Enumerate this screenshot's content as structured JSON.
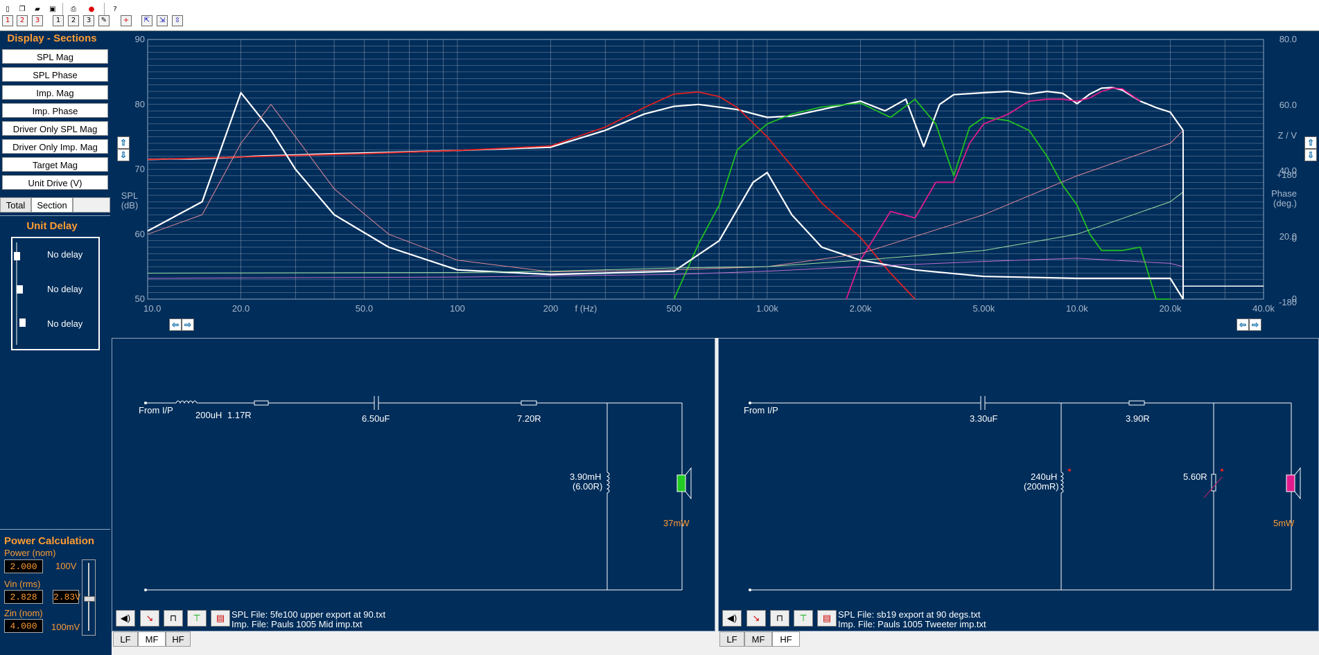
{
  "sidebar": {
    "display_title": "Display - Sections",
    "buttons": [
      "SPL Mag",
      "SPL Phase",
      "Imp. Mag",
      "Imp. Phase",
      "Driver Only SPL Mag",
      "Driver Only Imp. Mag",
      "Target Mag",
      "Unit Drive (V)"
    ],
    "tab_total": "Total",
    "tab_section": "Section",
    "unit_delay_title": "Unit Delay",
    "delays": [
      "No delay",
      "No delay",
      "No delay"
    ],
    "power_title": "Power Calculation",
    "power_nom_label": "Power (nom)",
    "power_nom_value": "2.000",
    "vin_label": "Vin (rms)",
    "vin_value": "2.828",
    "vin_display": "2.83V",
    "zin_label": "Zin (nom)",
    "zin_value": "4.000",
    "slider_top": "100V",
    "slider_bottom": "100mV"
  },
  "chart_data": {
    "type": "line",
    "xlabel": "f (Hz)",
    "ylabel_left": "SPL\n(dB)",
    "ylabel_right_imp": "Z / V",
    "ylabel_right_phase": "Phase\n(deg.)",
    "x_scale": "log",
    "xlim": [
      10,
      40000
    ],
    "ylim_left": [
      50,
      90
    ],
    "x_ticks": [
      "10.0",
      "20.0",
      "50.0",
      "100",
      "200",
      "500",
      "1.00k",
      "2.00k",
      "5.00k",
      "10.0k",
      "20.0k",
      "40.0k"
    ],
    "x_tick_values": [
      10,
      20,
      50,
      100,
      200,
      500,
      1000,
      2000,
      5000,
      10000,
      20000,
      40000
    ],
    "y_left_ticks": [
      "50",
      "60",
      "70",
      "80",
      "90"
    ],
    "y_right_ticks": [
      "80.0",
      "60.0",
      "40.0",
      "20.0",
      "0"
    ],
    "y_phase_ticks": [
      "+180",
      "0",
      "-180"
    ],
    "grid": true,
    "series": [
      {
        "color": "#ffffff",
        "x": [
          10,
          12,
          14,
          16,
          18,
          20,
          22,
          25,
          30,
          40,
          60,
          100,
          200,
          300,
          400,
          500,
          600,
          800,
          1000,
          1200,
          1600,
          2000,
          2400,
          2800,
          3200,
          3600,
          4000,
          5000,
          6000,
          7000,
          8000,
          9000,
          10000,
          11000,
          12000,
          13000,
          14000,
          16000,
          18000,
          20000,
          22000
        ],
        "values": [
          71.5,
          71.6,
          71.6,
          71.7,
          71.8,
          71.9,
          72,
          72.1,
          72.2,
          72.4,
          72.6,
          72.9,
          73.4,
          76,
          78.5,
          79.7,
          80,
          79.2,
          78,
          78.2,
          79.5,
          80.5,
          79,
          80.8,
          73.5,
          80,
          81.5,
          81.8,
          82,
          81.6,
          82,
          81.7,
          80.1,
          81.6,
          82.5,
          82.6,
          82.2,
          80.5,
          79.5,
          78.8,
          76
        ]
      },
      {
        "color": "#e02020",
        "x": [
          10,
          50,
          100,
          200,
          300,
          400,
          500,
          600,
          700,
          800,
          1000,
          1200,
          1500,
          2000,
          2500,
          3000
        ],
        "values": [
          71.5,
          72.4,
          72.9,
          73.6,
          76.5,
          79.5,
          81.6,
          81.9,
          81.2,
          79.5,
          75,
          70.5,
          64.8,
          59.5,
          54,
          49.5
        ]
      },
      {
        "color": "#20c020",
        "x": [
          500,
          600,
          700,
          800,
          1000,
          1200,
          1500,
          2000,
          2500,
          3000,
          3500,
          4000,
          4500,
          5000,
          6000,
          7000,
          8000,
          9000,
          10000,
          11000,
          12000,
          14000,
          16000,
          18000,
          20000
        ],
        "values": [
          49.5,
          58.5,
          64.5,
          73,
          77,
          78.5,
          79.6,
          80.2,
          78,
          80.8,
          77,
          69,
          76.5,
          78,
          77.5,
          76,
          72,
          67.5,
          64.5,
          60,
          57.5,
          57.5,
          58,
          50,
          45
        ]
      },
      {
        "color": "#e01c8c",
        "x": [
          1800,
          2000,
          2500,
          3000,
          3500,
          4000,
          4500,
          5000,
          6000,
          7000,
          8000,
          9000,
          10000,
          11000,
          12000,
          13000,
          14000,
          16000
        ],
        "values": [
          49.5,
          56,
          63.5,
          62.5,
          68,
          68,
          74,
          77,
          78.5,
          80.5,
          80.8,
          80.8,
          80.5,
          81,
          82,
          82.5,
          82.4,
          80.5
        ]
      },
      {
        "color": "#ffffff",
        "x": [
          10,
          15,
          20,
          25,
          30,
          40,
          60,
          100,
          200,
          500,
          700,
          900,
          1000,
          1200,
          1500,
          2000,
          3000,
          5000,
          10000,
          20000,
          22000
        ],
        "values": [
          60.5,
          65,
          81.8,
          76,
          70,
          63,
          58,
          54.5,
          53.8,
          54.3,
          59,
          68,
          69.5,
          63,
          58,
          56,
          54.5,
          53.5,
          53.2,
          53.2,
          49.8
        ]
      },
      {
        "color": "#e08a9a",
        "x": [
          10,
          15,
          20,
          25,
          30,
          40,
          60,
          100,
          200,
          500,
          1000,
          2000,
          5000,
          10000,
          20000,
          22000
        ],
        "values": [
          60,
          63,
          74,
          80,
          75,
          67,
          60,
          56,
          54.2,
          54.5,
          55,
          57,
          63,
          69,
          74,
          76
        ]
      },
      {
        "color": "#a0e0a0",
        "x": [
          10,
          100,
          200,
          500,
          1000,
          2000,
          5000,
          10000,
          20000,
          22000
        ],
        "values": [
          54,
          54.1,
          54.3,
          54.8,
          55,
          56,
          57.5,
          60,
          65,
          66.5
        ]
      },
      {
        "color": "#c070d0",
        "x": [
          10,
          100,
          500,
          1000,
          2000,
          5000,
          10000,
          20000,
          22000
        ],
        "values": [
          53.2,
          53.4,
          53.8,
          54.3,
          55,
          55.8,
          56.3,
          55.5,
          55
        ]
      }
    ]
  },
  "panels": {
    "mf": {
      "from_ip": "From I/P",
      "inductor1": "200uH",
      "r1": "1.17R",
      "c1": "6.50uF",
      "r2": "7.20R",
      "l2": "3.90mH",
      "l2_r": "(6.00R)",
      "power": "37mW",
      "spl_file": "SPL File: 5fe100 upper export at 90.txt",
      "imp_file": "Imp. File: Pauls 1005 Mid imp.txt",
      "tabs": [
        "LF",
        "MF",
        "HF"
      ]
    },
    "hf": {
      "from_ip": "From I/P",
      "c1": "3.30uF",
      "r1": "3.90R",
      "l1": "240uH",
      "l1_r": "(200mR)",
      "r2": "5.60R",
      "power": "5mW",
      "spl_file": "SPL File: sb19 export at 90 degs.txt",
      "imp_file": "Imp. File: Pauls 1005 Tweeter imp.txt",
      "tabs": [
        "LF",
        "MF",
        "HF"
      ]
    }
  }
}
